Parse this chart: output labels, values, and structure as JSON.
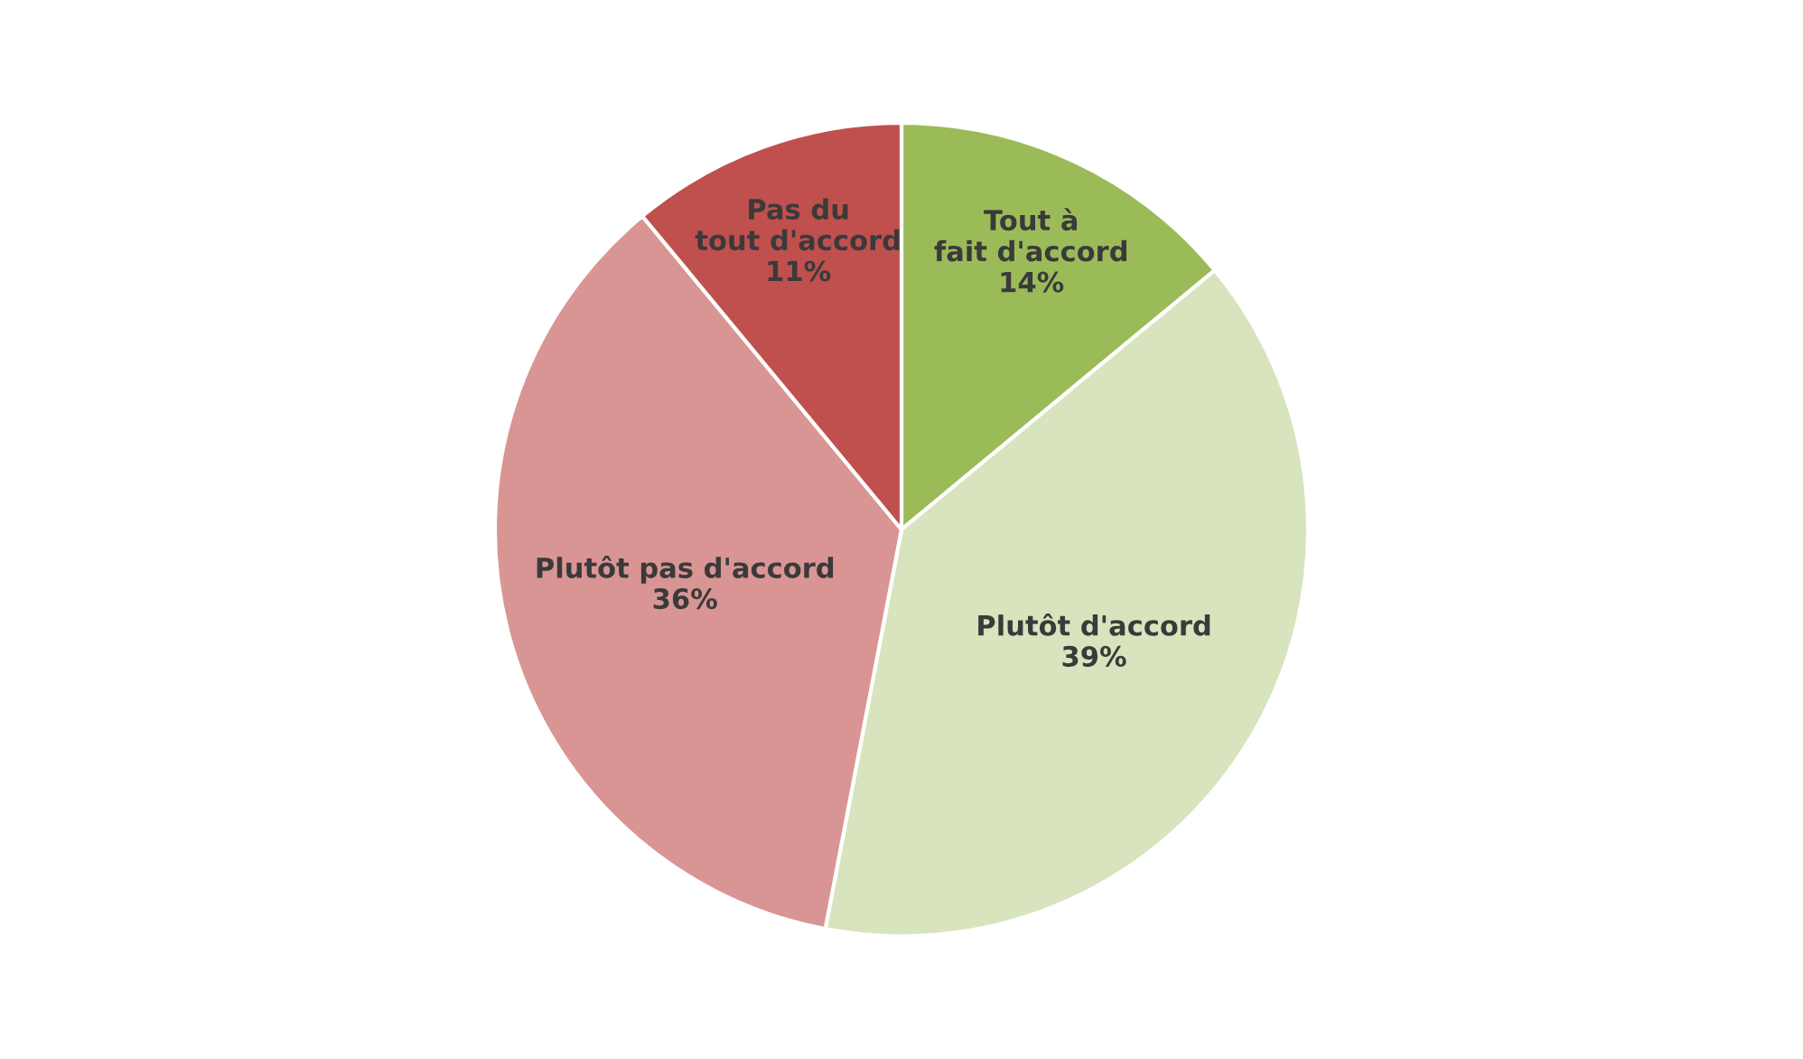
{
  "chart_data": {
    "type": "pie",
    "categories": [
      "Tout à fait d'accord",
      "Plutôt d'accord",
      "Plutôt pas d'accord",
      "Pas du tout d'accord"
    ],
    "values": [
      14,
      39,
      36,
      11
    ],
    "value_labels": [
      "14%",
      "39%",
      "36%",
      "11%"
    ],
    "colors": [
      "#9bbb59",
      "#d7e4bd",
      "#d99594",
      "#c0504d"
    ],
    "legend": false
  }
}
